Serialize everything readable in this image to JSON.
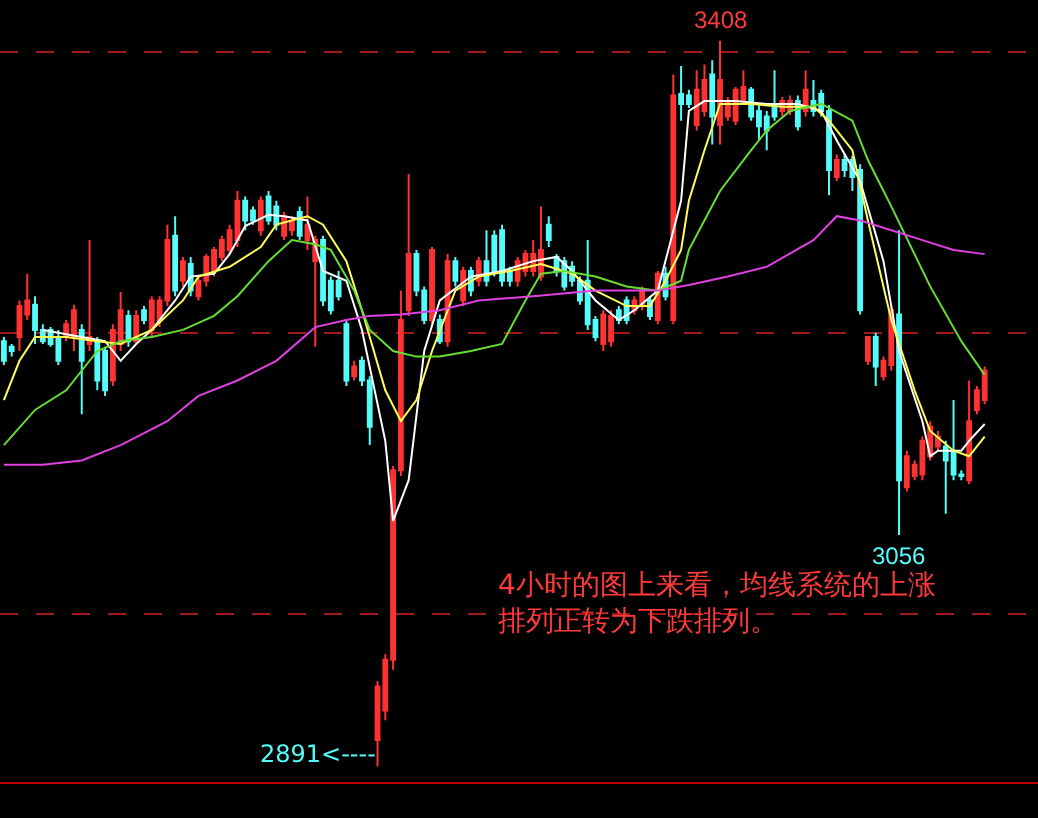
{
  "chart_data": {
    "type": "candlestick",
    "categories": [
      null,
      null,
      null,
      null,
      null,
      null,
      null,
      null,
      null,
      null,
      null,
      null,
      null,
      null,
      null,
      null,
      null,
      null,
      null,
      null,
      null,
      null,
      null,
      null,
      null,
      null,
      null,
      null,
      null,
      null,
      null,
      null,
      null,
      null,
      null,
      null,
      null,
      null,
      null,
      null,
      null,
      null,
      null,
      null,
      null,
      null,
      null,
      null,
      null,
      null,
      null,
      null,
      null,
      null,
      null,
      null,
      null,
      null,
      null,
      null,
      null,
      null,
      null,
      null,
      null,
      null,
      null,
      null,
      null,
      null,
      null,
      null,
      null,
      null,
      null,
      null,
      null,
      null,
      null,
      null,
      null,
      null,
      null,
      null,
      null,
      null,
      null,
      null,
      null,
      null,
      null,
      null,
      null,
      null,
      null,
      null,
      null,
      null,
      null,
      null,
      null,
      null,
      null,
      null,
      null,
      null,
      null,
      null,
      null,
      null,
      null,
      null,
      null,
      null,
      null,
      null,
      null,
      null,
      null,
      null,
      null,
      null,
      null,
      null,
      null,
      null,
      null
    ],
    "ohlc": [
      [
        3194,
        3197,
        3177,
        3180
      ],
      [
        3190,
        3192,
        3183,
        3187
      ],
      [
        3197,
        3223,
        3187,
        3219
      ],
      [
        3213,
        3242,
        3209,
        3223
      ],
      [
        3220,
        3226,
        3192,
        3202
      ],
      [
        3202,
        3206,
        3192,
        3194
      ],
      [
        3202,
        3204,
        3190,
        3192
      ],
      [
        3197,
        3202,
        3177,
        3180
      ],
      [
        3197,
        3209,
        3194,
        3206
      ],
      [
        3197,
        3220,
        3187,
        3216
      ],
      [
        3202,
        3206,
        3142,
        3180
      ],
      [
        3192,
        3266,
        3187,
        3197
      ],
      [
        3194,
        3197,
        3159,
        3166
      ],
      [
        3187,
        3190,
        3155,
        3159
      ],
      [
        3166,
        3206,
        3162,
        3202
      ],
      [
        3192,
        3229,
        3187,
        3216
      ],
      [
        3212,
        3216,
        3190,
        3194
      ],
      [
        3194,
        3216,
        3192,
        3212
      ],
      [
        3216,
        3219,
        3206,
        3209
      ],
      [
        3202,
        3226,
        3197,
        3223
      ],
      [
        3209,
        3226,
        3204,
        3223
      ],
      [
        3223,
        3277,
        3219,
        3266
      ],
      [
        3269,
        3283,
        3226,
        3230
      ],
      [
        3237,
        3254,
        3233,
        3251
      ],
      [
        3249,
        3254,
        3226,
        3230
      ],
      [
        3226,
        3240,
        3223,
        3237
      ],
      [
        3237,
        3256,
        3233,
        3254
      ],
      [
        3244,
        3261,
        3240,
        3259
      ],
      [
        3254,
        3269,
        3251,
        3266
      ],
      [
        3259,
        3277,
        3256,
        3273
      ],
      [
        3266,
        3301,
        3261,
        3294
      ],
      [
        3294,
        3297,
        3273,
        3280
      ],
      [
        3287,
        3290,
        3277,
        3280
      ],
      [
        3273,
        3297,
        3269,
        3294
      ],
      [
        3297,
        3301,
        3277,
        3280
      ],
      [
        3290,
        3294,
        3273,
        3277
      ],
      [
        3269,
        3286,
        3266,
        3283
      ],
      [
        3273,
        3283,
        3269,
        3280
      ],
      [
        3286,
        3290,
        3266,
        3269
      ],
      [
        3266,
        3297,
        3259,
        3277
      ],
      [
        3251,
        3269,
        3190,
        3266
      ],
      [
        3266,
        3269,
        3219,
        3223
      ],
      [
        3237,
        3240,
        3213,
        3216
      ],
      [
        3237,
        3244,
        3223,
        3226
      ],
      [
        3206,
        3209,
        3162,
        3166
      ],
      [
        3169,
        3180,
        3166,
        3176
      ],
      [
        3180,
        3183,
        3162,
        3166
      ],
      [
        3166,
        3169,
        3120,
        3133
      ],
      [
        2910,
        2952,
        2891,
        2948
      ],
      [
        2931,
        2971,
        2924,
        2967
      ],
      [
        2967,
        3105,
        2960,
        3102
      ],
      [
        3102,
        3230,
        3098,
        3209
      ],
      [
        3216,
        3313,
        3212,
        3256
      ],
      [
        3256,
        3259,
        3226,
        3230
      ],
      [
        3230,
        3233,
        3206,
        3209
      ],
      [
        3209,
        3261,
        3206,
        3259
      ],
      [
        3209,
        3213,
        3192,
        3194
      ],
      [
        3194,
        3256,
        3190,
        3251
      ],
      [
        3251,
        3254,
        3233,
        3237
      ],
      [
        3223,
        3247,
        3219,
        3244
      ],
      [
        3244,
        3247,
        3226,
        3230
      ],
      [
        3237,
        3254,
        3233,
        3251
      ],
      [
        3251,
        3273,
        3233,
        3237
      ],
      [
        3269,
        3273,
        3240,
        3244
      ],
      [
        3273,
        3277,
        3233,
        3237
      ],
      [
        3244,
        3247,
        3233,
        3237
      ],
      [
        3237,
        3254,
        3233,
        3251
      ],
      [
        3244,
        3259,
        3240,
        3256
      ],
      [
        3244,
        3266,
        3240,
        3256
      ],
      [
        3240,
        3290,
        3237,
        3259
      ],
      [
        3277,
        3283,
        3261,
        3266
      ],
      [
        3254,
        3256,
        3240,
        3244
      ],
      [
        3251,
        3254,
        3230,
        3233
      ],
      [
        3247,
        3251,
        3233,
        3237
      ],
      [
        3237,
        3240,
        3220,
        3223
      ],
      [
        3237,
        3266,
        3202,
        3206
      ],
      [
        3209,
        3212,
        3194,
        3197
      ],
      [
        3192,
        3216,
        3187,
        3213
      ],
      [
        3194,
        3216,
        3190,
        3212
      ],
      [
        3216,
        3219,
        3206,
        3209
      ],
      [
        3223,
        3226,
        3206,
        3209
      ],
      [
        3216,
        3226,
        3213,
        3223
      ],
      [
        3219,
        3233,
        3216,
        3230
      ],
      [
        3223,
        3226,
        3209,
        3212
      ],
      [
        3209,
        3244,
        3206,
        3242
      ],
      [
        3242,
        3247,
        3223,
        3226
      ],
      [
        3209,
        3384,
        3206,
        3369
      ],
      [
        3370,
        3390,
        3351,
        3363
      ],
      [
        3369,
        3373,
        3360,
        3363
      ],
      [
        3348,
        3387,
        3344,
        3373
      ],
      [
        3358,
        3391,
        3354,
        3380
      ],
      [
        3384,
        3394,
        3334,
        3354
      ],
      [
        3348,
        3408,
        3334,
        3380
      ],
      [
        3354,
        3368,
        3351,
        3365
      ],
      [
        3351,
        3375,
        3348,
        3373
      ],
      [
        3365,
        3387,
        3363,
        3375
      ],
      [
        3373,
        3375,
        3351,
        3354
      ],
      [
        3358,
        3362,
        3337,
        3347
      ],
      [
        3354,
        3358,
        3330,
        3344
      ],
      [
        3363,
        3387,
        3351,
        3354
      ],
      [
        3358,
        3368,
        3354,
        3365
      ],
      [
        3358,
        3369,
        3355,
        3365
      ],
      [
        3365,
        3369,
        3344,
        3347
      ],
      [
        3358,
        3387,
        3354,
        3373
      ],
      [
        3365,
        3380,
        3354,
        3358
      ],
      [
        3370,
        3373,
        3354,
        3358
      ],
      [
        3358,
        3362,
        3298,
        3316
      ],
      [
        3311,
        3327,
        3308,
        3323
      ],
      [
        3323,
        3327,
        3311,
        3316
      ],
      [
        3323,
        3326,
        3301,
        3311
      ],
      [
        3316,
        3320,
        3213,
        3216
      ],
      [
        3180,
        3197,
        3177,
        3197
      ],
      [
        3197,
        3200,
        3162,
        3176
      ],
      [
        3169,
        3183,
        3166,
        3180
      ],
      [
        3177,
        3219,
        3173,
        3216
      ],
      [
        3213,
        3273,
        3056,
        3095
      ],
      [
        3090,
        3116,
        3087,
        3112
      ],
      [
        3098,
        3109,
        3095,
        3106
      ],
      [
        3099,
        3126,
        3095,
        3123
      ],
      [
        3112,
        3137,
        3109,
        3133
      ],
      [
        3119,
        3130,
        3116,
        3126
      ],
      [
        3119,
        3123,
        3071,
        3109
      ],
      [
        3116,
        3152,
        3095,
        3099
      ],
      [
        3099,
        3102,
        3095,
        3098
      ],
      [
        3095,
        3166,
        3092,
        3137
      ],
      [
        3145,
        3162,
        3142,
        3159
      ],
      [
        3152,
        3176,
        3149,
        3173
      ]
    ],
    "colors": [
      "#54fcfc",
      "#54fcfc",
      "#ff3232",
      "#ff3232",
      "#54fcfc",
      "#54fcfc",
      "#54fcfc",
      "#54fcfc",
      "#ff3232",
      "#ff3232",
      "#54fcfc",
      "#ff3232",
      "#54fcfc",
      "#54fcfc",
      "#ff3232",
      "#ff3232",
      "#54fcfc",
      "#ff3232",
      "#54fcfc",
      "#ff3232",
      "#ff3232",
      "#ff3232",
      "#54fcfc",
      "#ff3232",
      "#54fcfc",
      "#ff3232",
      "#ff3232",
      "#ff3232",
      "#ff3232",
      "#ff3232",
      "#ff3232",
      "#54fcfc",
      "#54fcfc",
      "#ff3232",
      "#54fcfc",
      "#54fcfc",
      "#ff3232",
      "#ff3232",
      "#54fcfc",
      "#ff3232",
      "#ff3232",
      "#54fcfc",
      "#54fcfc",
      "#54fcfc",
      "#54fcfc",
      "#ff3232",
      "#54fcfc",
      "#54fcfc",
      "#ff3232",
      "#ff3232",
      "#ff3232",
      "#ff3232",
      "#ff3232",
      "#54fcfc",
      "#54fcfc",
      "#ff3232",
      "#54fcfc",
      "#ff3232",
      "#54fcfc",
      "#ff3232",
      "#54fcfc",
      "#ff3232",
      "#54fcfc",
      "#54fcfc",
      "#54fcfc",
      "#54fcfc",
      "#ff3232",
      "#ff3232",
      "#ff3232",
      "#ff3232",
      "#54fcfc",
      "#54fcfc",
      "#54fcfc",
      "#54fcfc",
      "#54fcfc",
      "#54fcfc",
      "#54fcfc",
      "#ff3232",
      "#ff3232",
      "#54fcfc",
      "#54fcfc",
      "#ff3232",
      "#ff3232",
      "#54fcfc",
      "#ff3232",
      "#54fcfc",
      "#ff3232",
      "#54fcfc",
      "#54fcfc",
      "#ff3232",
      "#ff3232",
      "#54fcfc",
      "#ff3232",
      "#ff3232",
      "#ff3232",
      "#ff3232",
      "#54fcfc",
      "#54fcfc",
      "#54fcfc",
      "#54fcfc",
      "#ff3232",
      "#ff3232",
      "#54fcfc",
      "#ff3232",
      "#54fcfc",
      "#54fcfc",
      "#54fcfc",
      "#ff3232",
      "#54fcfc",
      "#54fcfc",
      "#54fcfc",
      "#ff3232",
      "#54fcfc",
      "#ff3232",
      "#ff3232",
      "#54fcfc",
      "#ff3232",
      "#ff3232",
      "#ff3232",
      "#ff3232",
      "#ff3232",
      "#54fcfc",
      "#54fcfc",
      "#54fcfc",
      "#ff3232",
      "#ff3232",
      "#ff3232"
    ],
    "series": [
      {
        "type": "line",
        "color": "#ffffff",
        "values": [
          null,
          null,
          null,
          null,
          null,
          3202,
          null,
          null,
          null,
          null,
          3197,
          null,
          null,
          3194,
          null,
          3180,
          null,
          3192,
          null,
          3202,
          null,
          null,
          3223,
          null,
          3240,
          null,
          null,
          3242,
          null,
          3256,
          null,
          3276,
          null,
          null,
          3284,
          null,
          3283,
          null,
          null,
          3280,
          null,
          3244,
          null,
          null,
          3237,
          null,
          3202,
          null,
          null,
          3123,
          3066,
          null,
          3095,
          null,
          3187,
          null,
          3223,
          null,
          null,
          null,
          3240,
          null,
          null,
          null,
          3244,
          null,
          null,
          null,
          3251,
          null,
          null,
          3254,
          null,
          3244,
          null,
          null,
          3223,
          null,
          null,
          3209,
          null,
          3216,
          null,
          null,
          3230,
          null,
          null,
          3294,
          3358,
          null,
          3365,
          null,
          null,
          null,
          3365,
          null,
          null,
          null,
          3363,
          null,
          null,
          null,
          3363,
          null,
          null,
          3358,
          null,
          3337,
          null,
          null,
          3308,
          null,
          null,
          3251,
          null,
          3187,
          null,
          null,
          3137,
          3112,
          3116,
          null,
          null,
          3116,
          3123,
          null,
          3135
        ]
      },
      {
        "type": "line",
        "color": "#ffff54",
        "values": [
          3152,
          null,
          3180,
          null,
          3197,
          null,
          null,
          null,
          3197,
          null,
          null,
          null,
          3194,
          null,
          null,
          3192,
          null,
          null,
          null,
          3202,
          null,
          null,
          null,
          3223,
          null,
          3240,
          null,
          null,
          null,
          3247,
          null,
          null,
          null,
          3261,
          null,
          3277,
          null,
          null,
          null,
          3283,
          null,
          3277,
          null,
          null,
          3251,
          null,
          3216,
          null,
          null,
          3159,
          null,
          3137,
          null,
          3152,
          null,
          3187,
          null,
          null,
          3230,
          null,
          null,
          3240,
          null,
          null,
          null,
          3244,
          null,
          null,
          null,
          3249,
          null,
          null,
          null,
          3242,
          null,
          null,
          3230,
          null,
          null,
          null,
          3219,
          null,
          null,
          3219,
          null,
          3237,
          null,
          3259,
          3294,
          null,
          3330,
          null,
          3363,
          null,
          null,
          null,
          3363,
          null,
          null,
          null,
          3361,
          null,
          null,
          null,
          3361,
          null,
          3351,
          null,
          null,
          3330,
          null,
          3280,
          null,
          null,
          3209,
          null,
          null,
          3159,
          null,
          3130,
          null,
          null,
          3116,
          null,
          3112,
          null,
          3126
        ]
      },
      {
        "type": "line",
        "color": "#66dd33",
        "values": [
          3120,
          null,
          null,
          null,
          3145,
          null,
          null,
          null,
          3159,
          null,
          null,
          null,
          3187,
          null,
          null,
          3194,
          null,
          null,
          null,
          3197,
          null,
          null,
          null,
          3202,
          null,
          null,
          null,
          3212,
          null,
          null,
          3226,
          null,
          null,
          null,
          3251,
          null,
          null,
          3266,
          null,
          null,
          3263,
          null,
          3259,
          null,
          null,
          3230,
          null,
          3202,
          null,
          null,
          3187,
          null,
          null,
          3183,
          null,
          null,
          3183,
          null,
          null,
          null,
          3187,
          null,
          null,
          null,
          3192,
          null,
          null,
          3223,
          null,
          3242,
          null,
          null,
          3244,
          null,
          null,
          null,
          3240,
          null,
          null,
          null,
          3233,
          null,
          null,
          null,
          3230,
          null,
          null,
          3237,
          3259,
          null,
          null,
          null,
          3301,
          null,
          null,
          null,
          3330,
          null,
          3344,
          null,
          null,
          3358,
          null,
          null,
          null,
          3363,
          null,
          null,
          null,
          3351,
          null,
          3323,
          null,
          null,
          3290,
          null,
          null,
          null,
          null,
          3233,
          null,
          null,
          null,
          3194,
          null,
          null,
          3170
        ]
      },
      {
        "type": "line",
        "color": "#e040e0",
        "values": [
          3106,
          null,
          null,
          null,
          null,
          3106,
          null,
          null,
          null,
          null,
          3109,
          null,
          null,
          null,
          null,
          3120,
          null,
          null,
          null,
          null,
          null,
          3137,
          null,
          null,
          null,
          3155,
          null,
          null,
          null,
          null,
          3166,
          null,
          null,
          null,
          null,
          3180,
          null,
          null,
          null,
          null,
          3204,
          null,
          null,
          null,
          3209,
          null,
          null,
          3212,
          null,
          null,
          null,
          3213,
          null,
          null,
          null,
          null,
          3216,
          null,
          null,
          null,
          null,
          3223,
          null,
          null,
          null,
          null,
          null,
          null,
          3226,
          null,
          null,
          null,
          null,
          null,
          null,
          null,
          3230,
          null,
          null,
          null,
          null,
          null,
          null,
          null,
          3230,
          null,
          null,
          null,
          3234,
          null,
          null,
          null,
          null,
          3240,
          null,
          null,
          null,
          null,
          3247,
          null,
          null,
          null,
          null,
          null,
          3266,
          null,
          null,
          3283,
          null,
          null,
          3280,
          null,
          null,
          null,
          3273,
          null,
          null,
          null,
          3266,
          null,
          null,
          null,
          3259,
          null,
          null,
          null,
          3256
        ]
      }
    ],
    "ylim": [
      2880,
      3437
    ],
    "yticks": [
      {
        "value": 3000,
        "label": null
      },
      {
        "value": 3200,
        "label": null
      },
      {
        "value": 3400,
        "label": null
      }
    ],
    "grid": "y",
    "legend": false,
    "annotations": [
      {
        "text": "3408",
        "y": 3408
      },
      {
        "text": "3056",
        "y": 3056
      },
      "2891<----",
      "4小时的图上来看，均线系统的上涨排列正转为下跌排列。"
    ]
  }
}
